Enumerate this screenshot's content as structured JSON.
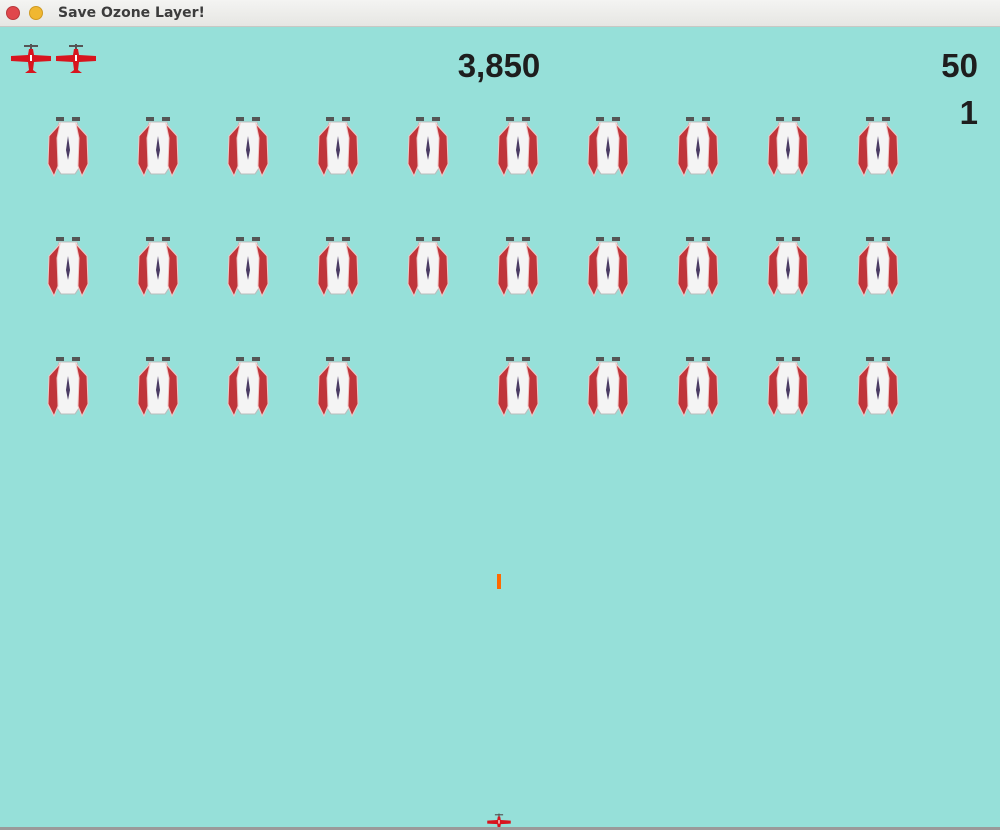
{
  "window": {
    "title": "Save Ozone Layer!"
  },
  "hud": {
    "score": "3,850",
    "top_right_value": "50",
    "level": "1",
    "lives": 2
  },
  "enemies": {
    "columns": 10,
    "rows": [
      [
        1,
        1,
        1,
        1,
        1,
        1,
        1,
        1,
        1,
        1
      ],
      [
        1,
        1,
        1,
        1,
        1,
        1,
        1,
        1,
        1,
        1
      ],
      [
        1,
        1,
        1,
        1,
        0,
        1,
        1,
        1,
        1,
        1
      ]
    ]
  },
  "icons": {
    "life": "red-plane-icon",
    "enemy": "enemy-ship-icon",
    "player": "red-plane-icon"
  },
  "colors": {
    "background": "#96e0d9",
    "bullet": "#ff6a00",
    "plane": "#d8141e",
    "enemy_wing": "#c0353a",
    "text": "#1e1e1e"
  }
}
